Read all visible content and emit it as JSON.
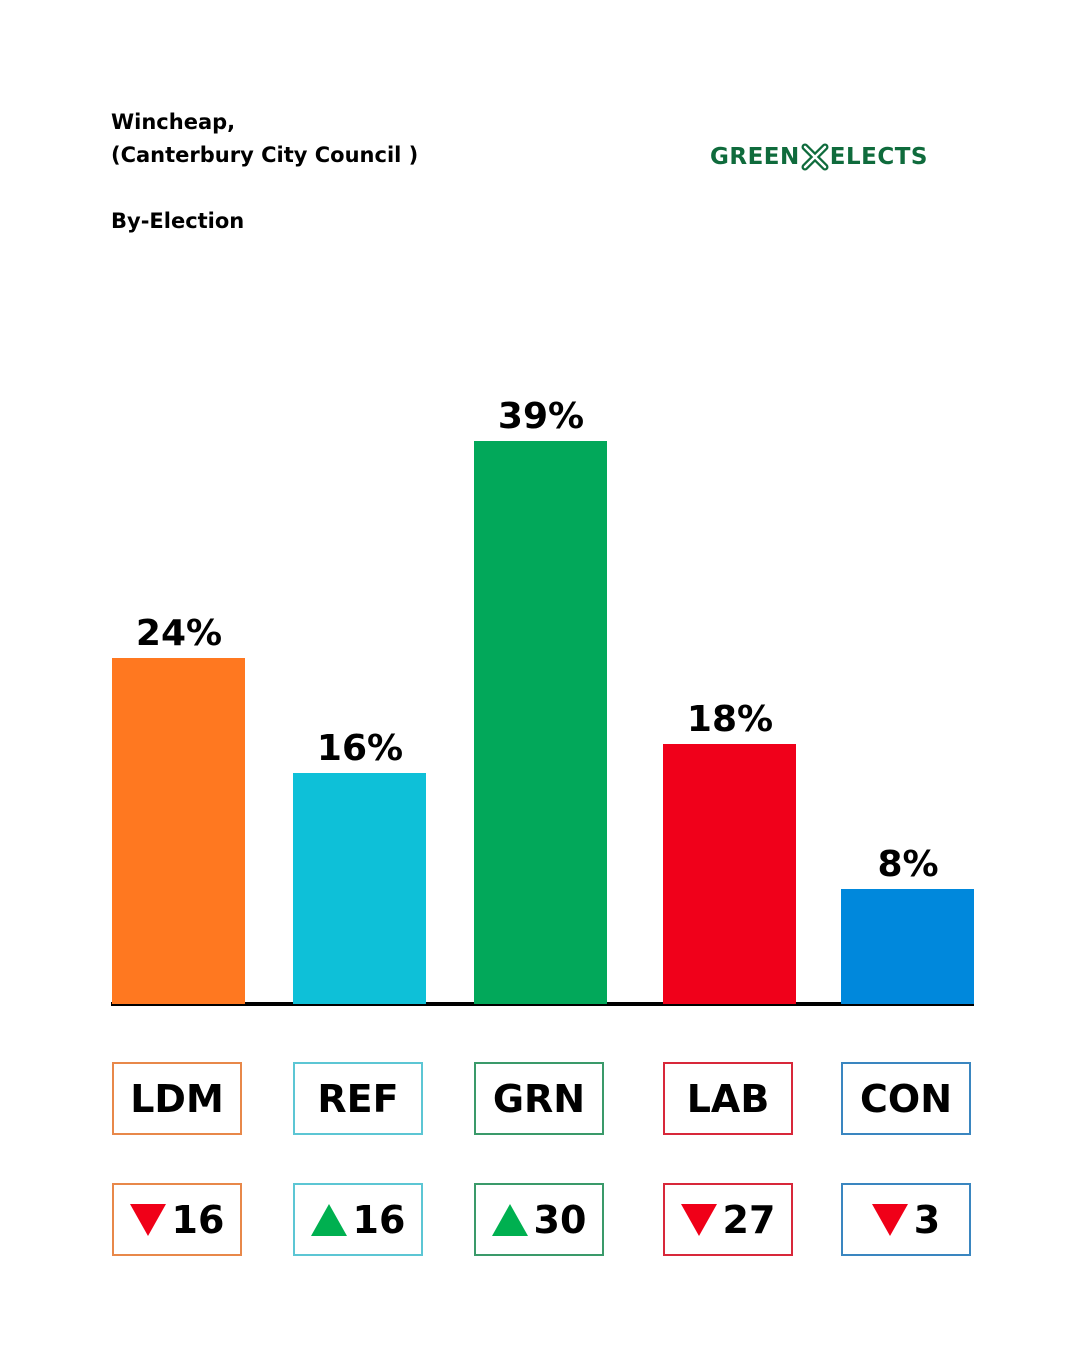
{
  "header": {
    "line1": "Wincheap,",
    "line2": "(Canterbury City Council )",
    "line3": "By-Election"
  },
  "logo": {
    "left": "GREEN",
    "right": "ELECTS",
    "color": "#0f6b3c"
  },
  "chart_data": {
    "type": "bar",
    "title": "Wincheap, (Canterbury City Council ) By-Election",
    "categories": [
      "LDM",
      "REF",
      "GRN",
      "LAB",
      "CON"
    ],
    "values": [
      24,
      16,
      39,
      18,
      8
    ],
    "value_labels": [
      "24%",
      "16%",
      "39%",
      "18%",
      "8%"
    ],
    "colors": [
      "#ff7820",
      "#0ec0d8",
      "#02a85a",
      "#f0001a",
      "#0088dc"
    ],
    "border_colors": [
      "#e8884a",
      "#5cc6d4",
      "#3a9a6a",
      "#d8283a",
      "#3a86c0"
    ],
    "changes": [
      {
        "direction": "down",
        "value": "16"
      },
      {
        "direction": "up",
        "value": "16"
      },
      {
        "direction": "up",
        "value": "30"
      },
      {
        "direction": "down",
        "value": "27"
      },
      {
        "direction": "down",
        "value": "3"
      }
    ],
    "ylim": [
      0,
      39
    ],
    "xlabel": "",
    "ylabel": "",
    "grid": false
  }
}
